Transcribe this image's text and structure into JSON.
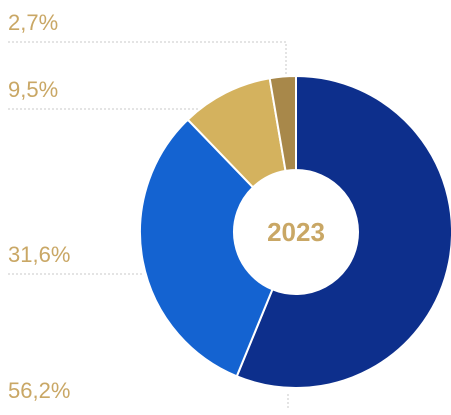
{
  "chart_data": {
    "type": "pie",
    "variant": "donut",
    "center_label": "2023",
    "slices": [
      {
        "value": 56.2,
        "label": "56,2%",
        "color": "#0d2f8c"
      },
      {
        "value": 31.6,
        "label": "31,6%",
        "color": "#1463d1"
      },
      {
        "value": 9.5,
        "label": "9,5%",
        "color": "#d4b25e"
      },
      {
        "value": 2.7,
        "label": "2,7%",
        "color": "#a8884a"
      }
    ],
    "label_color": "#c9a765",
    "center_color": "#c9a765",
    "legend_placement": "left"
  }
}
